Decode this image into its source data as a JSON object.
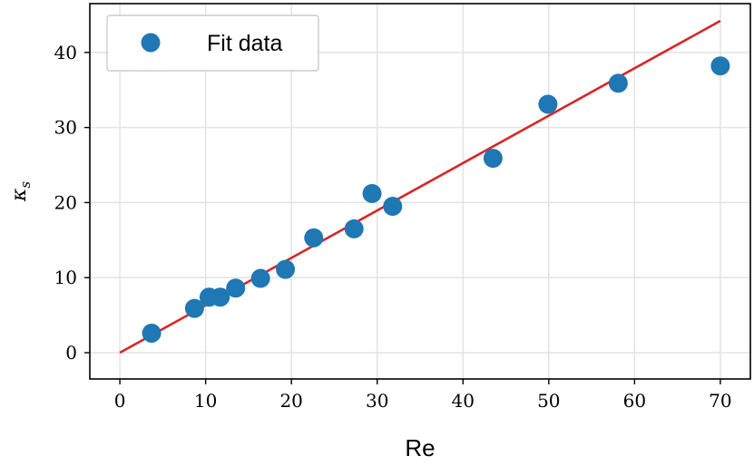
{
  "chart_data": {
    "type": "scatter",
    "title": "",
    "xlabel": "Re",
    "ylabel": "κ",
    "ylabel_subscript": "s",
    "xlim": [
      -3.5,
      73.5
    ],
    "ylim": [
      -3.5,
      46.5
    ],
    "xticks": [
      0,
      10,
      20,
      30,
      40,
      50,
      60,
      70
    ],
    "yticks": [
      0,
      10,
      20,
      30,
      40
    ],
    "grid": true,
    "legend_position": "top-left",
    "series": [
      {
        "name": "Fit data",
        "kind": "points",
        "color": "#1f77b4",
        "x": [
          3.7,
          8.7,
          10.4,
          11.7,
          13.5,
          16.4,
          19.3,
          22.6,
          27.3,
          29.4,
          31.8,
          43.5,
          49.9,
          58.1,
          70.0
        ],
        "y": [
          2.6,
          5.9,
          7.4,
          7.4,
          8.6,
          9.9,
          11.1,
          15.3,
          16.5,
          21.2,
          19.5,
          25.9,
          33.1,
          35.9,
          38.2
        ]
      },
      {
        "kind": "line",
        "color": "#d62728",
        "x": [
          0,
          70
        ],
        "y": [
          0,
          44.2
        ]
      }
    ]
  }
}
